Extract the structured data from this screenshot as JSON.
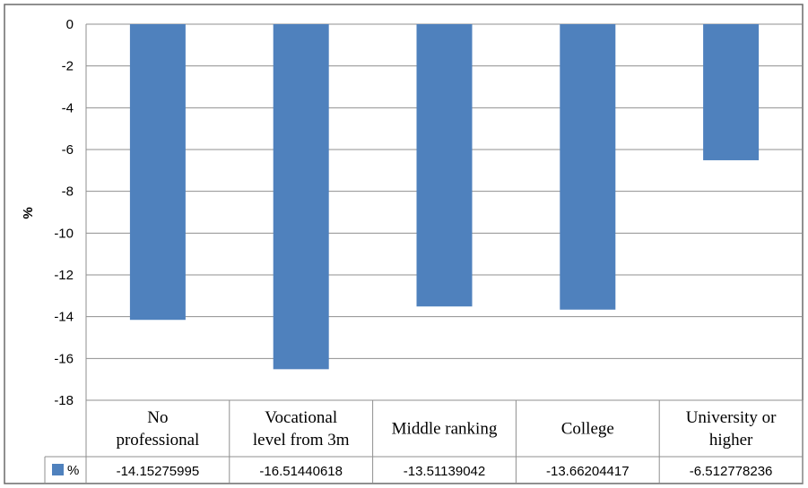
{
  "chart_data": {
    "type": "bar",
    "categories": [
      [
        "No",
        "professional"
      ],
      [
        "Vocational",
        "level from 3m"
      ],
      [
        "Middle ranking"
      ],
      [
        "College"
      ],
      [
        "University or",
        "higher"
      ]
    ],
    "series": [
      {
        "name": "%",
        "values": [
          -14.15275995,
          -16.51440618,
          -13.51139042,
          -13.66204417,
          -6.512778236
        ],
        "value_labels": [
          "-14.15275995",
          "-16.51440618",
          "-13.51139042",
          "-13.66204417",
          "-6.512778236"
        ],
        "color": "#4f81bd"
      }
    ],
    "ylabel": "%",
    "ylim": [
      -18,
      0
    ],
    "yticks": [
      0,
      -2,
      -4,
      -6,
      -8,
      -10,
      -12,
      -14,
      -16,
      -18
    ],
    "grid": true,
    "data_table": true
  }
}
